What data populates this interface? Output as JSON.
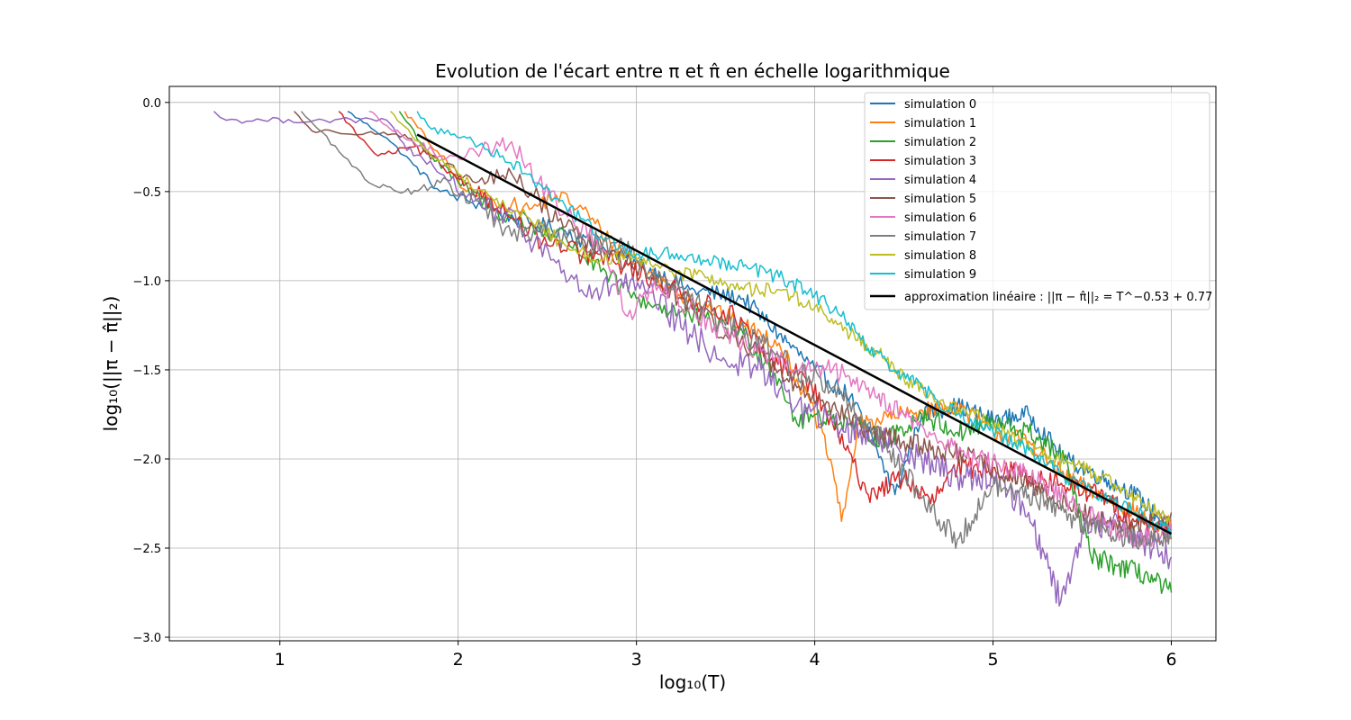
{
  "chart_data": {
    "type": "line",
    "title": "Evolution de l'écart entre π et π̂ en échelle logarithmique",
    "xlabel": "log₁₀(T)",
    "ylabel": "log₁₀(||π − π̂||₂)",
    "xlim": [
      0.38,
      6.25
    ],
    "ylim": [
      -3.02,
      0.09
    ],
    "xticks": [
      1,
      2,
      3,
      4,
      5,
      6
    ],
    "xtick_labels": [
      "1",
      "2",
      "3",
      "4",
      "5",
      "6"
    ],
    "yticks": [
      0.0,
      -0.5,
      -1.0,
      -1.5,
      -2.0,
      -2.5,
      -3.0
    ],
    "ytick_labels": [
      "0.0",
      "−0.5",
      "−1.0",
      "−1.5",
      "−2.0",
      "−2.5",
      "−3.0"
    ],
    "grid": true,
    "legend_position": "top-right",
    "series": [
      {
        "name": "simulation 0",
        "color": "#1f77b4",
        "noise": 0.05,
        "points": [
          [
            1.38,
            -0.05
          ],
          [
            1.6,
            -0.2
          ],
          [
            1.75,
            -0.35
          ],
          [
            1.9,
            -0.5
          ],
          [
            2.05,
            -0.55
          ],
          [
            2.2,
            -0.6
          ],
          [
            2.4,
            -0.68
          ],
          [
            2.6,
            -0.72
          ],
          [
            2.8,
            -0.82
          ],
          [
            3.0,
            -0.9
          ],
          [
            3.3,
            -1.05
          ],
          [
            3.6,
            -1.1
          ],
          [
            3.8,
            -1.3
          ],
          [
            4.0,
            -1.5
          ],
          [
            4.2,
            -1.65
          ],
          [
            4.35,
            -1.95
          ],
          [
            4.45,
            -2.2
          ],
          [
            4.6,
            -1.75
          ],
          [
            4.8,
            -1.7
          ],
          [
            5.0,
            -1.78
          ],
          [
            5.2,
            -1.75
          ],
          [
            5.4,
            -2.0
          ],
          [
            5.6,
            -2.1
          ],
          [
            5.8,
            -2.2
          ],
          [
            6.0,
            -2.4
          ]
        ]
      },
      {
        "name": "simulation 1",
        "color": "#ff7f0e",
        "noise": 0.05,
        "points": [
          [
            1.7,
            -0.05
          ],
          [
            1.9,
            -0.3
          ],
          [
            2.05,
            -0.5
          ],
          [
            2.2,
            -0.55
          ],
          [
            2.4,
            -0.6
          ],
          [
            2.55,
            -0.52
          ],
          [
            2.7,
            -0.6
          ],
          [
            2.85,
            -0.78
          ],
          [
            3.0,
            -0.9
          ],
          [
            3.2,
            -1.05
          ],
          [
            3.4,
            -1.15
          ],
          [
            3.6,
            -1.25
          ],
          [
            3.8,
            -1.35
          ],
          [
            4.0,
            -1.75
          ],
          [
            4.1,
            -2.05
          ],
          [
            4.15,
            -2.35
          ],
          [
            4.25,
            -1.8
          ],
          [
            4.5,
            -1.75
          ],
          [
            4.8,
            -1.7
          ],
          [
            5.0,
            -1.85
          ],
          [
            5.2,
            -1.9
          ],
          [
            5.4,
            -2.1
          ],
          [
            5.6,
            -2.2
          ],
          [
            5.8,
            -2.3
          ],
          [
            6.0,
            -2.45
          ]
        ]
      },
      {
        "name": "simulation 2",
        "color": "#2ca02c",
        "noise": 0.06,
        "points": [
          [
            1.67,
            -0.05
          ],
          [
            1.85,
            -0.3
          ],
          [
            2.0,
            -0.45
          ],
          [
            2.2,
            -0.6
          ],
          [
            2.4,
            -0.7
          ],
          [
            2.6,
            -0.75
          ],
          [
            2.8,
            -0.95
          ],
          [
            3.0,
            -1.1
          ],
          [
            3.3,
            -1.2
          ],
          [
            3.6,
            -1.3
          ],
          [
            3.8,
            -1.55
          ],
          [
            3.9,
            -1.8
          ],
          [
            4.0,
            -1.75
          ],
          [
            4.2,
            -1.8
          ],
          [
            4.4,
            -1.9
          ],
          [
            4.6,
            -1.75
          ],
          [
            4.8,
            -1.85
          ],
          [
            5.0,
            -1.8
          ],
          [
            5.2,
            -1.85
          ],
          [
            5.4,
            -2.0
          ],
          [
            5.55,
            -2.55
          ],
          [
            5.7,
            -2.6
          ],
          [
            5.85,
            -2.65
          ],
          [
            6.0,
            -2.75
          ]
        ]
      },
      {
        "name": "simulation 3",
        "color": "#d62728",
        "noise": 0.06,
        "points": [
          [
            1.33,
            -0.05
          ],
          [
            1.45,
            -0.2
          ],
          [
            1.55,
            -0.3
          ],
          [
            1.75,
            -0.25
          ],
          [
            1.9,
            -0.35
          ],
          [
            2.05,
            -0.45
          ],
          [
            2.3,
            -0.65
          ],
          [
            2.5,
            -0.8
          ],
          [
            2.7,
            -0.85
          ],
          [
            2.9,
            -0.9
          ],
          [
            3.1,
            -1.0
          ],
          [
            3.3,
            -1.1
          ],
          [
            3.55,
            -1.2
          ],
          [
            3.75,
            -1.45
          ],
          [
            3.95,
            -1.55
          ],
          [
            4.1,
            -1.8
          ],
          [
            4.3,
            -2.2
          ],
          [
            4.5,
            -2.1
          ],
          [
            4.65,
            -2.25
          ],
          [
            4.8,
            -2.05
          ],
          [
            5.0,
            -2.05
          ],
          [
            5.2,
            -2.1
          ],
          [
            5.4,
            -2.15
          ],
          [
            5.6,
            -2.2
          ],
          [
            5.8,
            -2.35
          ],
          [
            6.0,
            -2.4
          ]
        ]
      },
      {
        "name": "simulation 4",
        "color": "#9467bd",
        "noise": 0.08,
        "points": [
          [
            0.63,
            -0.05
          ],
          [
            0.7,
            -0.1
          ],
          [
            1.6,
            -0.1
          ],
          [
            1.75,
            -0.3
          ],
          [
            1.9,
            -0.4
          ],
          [
            2.1,
            -0.55
          ],
          [
            2.35,
            -0.7
          ],
          [
            2.55,
            -0.9
          ],
          [
            2.75,
            -1.1
          ],
          [
            2.9,
            -1.0
          ],
          [
            3.1,
            -1.1
          ],
          [
            3.3,
            -1.3
          ],
          [
            3.5,
            -1.45
          ],
          [
            3.7,
            -1.5
          ],
          [
            3.9,
            -1.7
          ],
          [
            4.1,
            -1.8
          ],
          [
            4.4,
            -1.9
          ],
          [
            4.6,
            -2.0
          ],
          [
            4.8,
            -2.1
          ],
          [
            5.0,
            -2.1
          ],
          [
            5.2,
            -2.3
          ],
          [
            5.38,
            -2.8
          ],
          [
            5.5,
            -2.4
          ],
          [
            5.7,
            -2.35
          ],
          [
            5.9,
            -2.5
          ],
          [
            6.0,
            -2.55
          ]
        ]
      },
      {
        "name": "simulation 5",
        "color": "#8c564b",
        "noise": 0.06,
        "points": [
          [
            1.08,
            -0.05
          ],
          [
            1.18,
            -0.16
          ],
          [
            1.7,
            -0.18
          ],
          [
            1.9,
            -0.35
          ],
          [
            2.1,
            -0.45
          ],
          [
            2.3,
            -0.4
          ],
          [
            2.5,
            -0.6
          ],
          [
            2.65,
            -0.72
          ],
          [
            2.85,
            -0.85
          ],
          [
            3.05,
            -0.95
          ],
          [
            3.25,
            -1.1
          ],
          [
            3.5,
            -1.3
          ],
          [
            3.7,
            -1.4
          ],
          [
            3.9,
            -1.6
          ],
          [
            4.1,
            -1.7
          ],
          [
            4.3,
            -1.85
          ],
          [
            4.5,
            -1.9
          ],
          [
            4.7,
            -1.95
          ],
          [
            4.9,
            -2.0
          ],
          [
            5.1,
            -2.1
          ],
          [
            5.3,
            -2.2
          ],
          [
            5.5,
            -2.3
          ],
          [
            5.7,
            -2.4
          ],
          [
            5.85,
            -2.35
          ],
          [
            6.0,
            -2.3
          ]
        ]
      },
      {
        "name": "simulation 6",
        "color": "#e377c2",
        "noise": 0.06,
        "points": [
          [
            1.5,
            -0.05
          ],
          [
            1.62,
            -0.15
          ],
          [
            1.75,
            -0.22
          ],
          [
            1.9,
            -0.3
          ],
          [
            2.1,
            -0.28
          ],
          [
            2.3,
            -0.22
          ],
          [
            2.45,
            -0.45
          ],
          [
            2.6,
            -0.62
          ],
          [
            2.8,
            -0.8
          ],
          [
            2.95,
            -1.2
          ],
          [
            3.1,
            -1.0
          ],
          [
            3.3,
            -1.15
          ],
          [
            3.5,
            -1.3
          ],
          [
            3.7,
            -1.4
          ],
          [
            3.9,
            -1.5
          ],
          [
            4.1,
            -1.5
          ],
          [
            4.3,
            -1.6
          ],
          [
            4.5,
            -1.75
          ],
          [
            4.7,
            -1.9
          ],
          [
            4.9,
            -2.0
          ],
          [
            5.1,
            -2.05
          ],
          [
            5.3,
            -2.15
          ],
          [
            5.5,
            -2.3
          ],
          [
            5.7,
            -2.4
          ],
          [
            5.85,
            -2.45
          ],
          [
            6.0,
            -2.4
          ]
        ]
      },
      {
        "name": "simulation 7",
        "color": "#7f7f7f",
        "noise": 0.07,
        "points": [
          [
            1.12,
            -0.05
          ],
          [
            1.5,
            -0.45
          ],
          [
            1.7,
            -0.5
          ],
          [
            1.9,
            -0.45
          ],
          [
            2.1,
            -0.55
          ],
          [
            2.3,
            -0.75
          ],
          [
            2.5,
            -0.72
          ],
          [
            2.7,
            -0.8
          ],
          [
            2.9,
            -0.78
          ],
          [
            3.1,
            -0.95
          ],
          [
            3.3,
            -1.1
          ],
          [
            3.5,
            -1.25
          ],
          [
            3.7,
            -1.35
          ],
          [
            3.9,
            -1.5
          ],
          [
            4.1,
            -1.6
          ],
          [
            4.3,
            -1.8
          ],
          [
            4.5,
            -2.05
          ],
          [
            4.65,
            -2.3
          ],
          [
            4.8,
            -2.45
          ],
          [
            5.0,
            -2.15
          ],
          [
            5.2,
            -2.2
          ],
          [
            5.4,
            -2.3
          ],
          [
            5.6,
            -2.4
          ],
          [
            5.8,
            -2.45
          ],
          [
            6.0,
            -2.45
          ]
        ]
      },
      {
        "name": "simulation 8",
        "color": "#bcbd22",
        "noise": 0.04,
        "points": [
          [
            1.62,
            -0.05
          ],
          [
            1.8,
            -0.25
          ],
          [
            2.0,
            -0.4
          ],
          [
            2.2,
            -0.55
          ],
          [
            2.4,
            -0.65
          ],
          [
            2.6,
            -0.8
          ],
          [
            2.8,
            -0.88
          ],
          [
            3.0,
            -0.88
          ],
          [
            3.2,
            -0.95
          ],
          [
            3.4,
            -0.98
          ],
          [
            3.6,
            -1.05
          ],
          [
            3.8,
            -1.05
          ],
          [
            4.0,
            -1.15
          ],
          [
            4.2,
            -1.3
          ],
          [
            4.35,
            -1.4
          ],
          [
            4.5,
            -1.55
          ],
          [
            4.7,
            -1.68
          ],
          [
            4.9,
            -1.75
          ],
          [
            5.1,
            -1.88
          ],
          [
            5.3,
            -1.98
          ],
          [
            5.5,
            -2.05
          ],
          [
            5.7,
            -2.15
          ],
          [
            5.85,
            -2.25
          ],
          [
            6.0,
            -2.35
          ]
        ]
      },
      {
        "name": "simulation 9",
        "color": "#17becf",
        "noise": 0.04,
        "points": [
          [
            1.77,
            -0.05
          ],
          [
            1.85,
            -0.15
          ],
          [
            2.05,
            -0.2
          ],
          [
            2.25,
            -0.3
          ],
          [
            2.45,
            -0.45
          ],
          [
            2.6,
            -0.58
          ],
          [
            2.8,
            -0.75
          ],
          [
            3.0,
            -0.85
          ],
          [
            3.2,
            -0.85
          ],
          [
            3.4,
            -0.88
          ],
          [
            3.6,
            -0.92
          ],
          [
            3.8,
            -0.98
          ],
          [
            4.0,
            -1.08
          ],
          [
            4.15,
            -1.2
          ],
          [
            4.3,
            -1.38
          ],
          [
            4.45,
            -1.5
          ],
          [
            4.6,
            -1.6
          ],
          [
            4.8,
            -1.75
          ],
          [
            5.0,
            -1.85
          ],
          [
            5.2,
            -1.95
          ],
          [
            5.4,
            -2.1
          ],
          [
            5.6,
            -2.2
          ],
          [
            5.8,
            -2.3
          ],
          [
            6.0,
            -2.4
          ]
        ]
      }
    ],
    "fit_line": {
      "name": "approximation linéaire : ||π − π̂||₂ = T^−0.53 + 0.77",
      "color": "#000000",
      "points": [
        [
          1.77,
          -0.18
        ],
        [
          6.0,
          -2.42
        ]
      ]
    }
  }
}
